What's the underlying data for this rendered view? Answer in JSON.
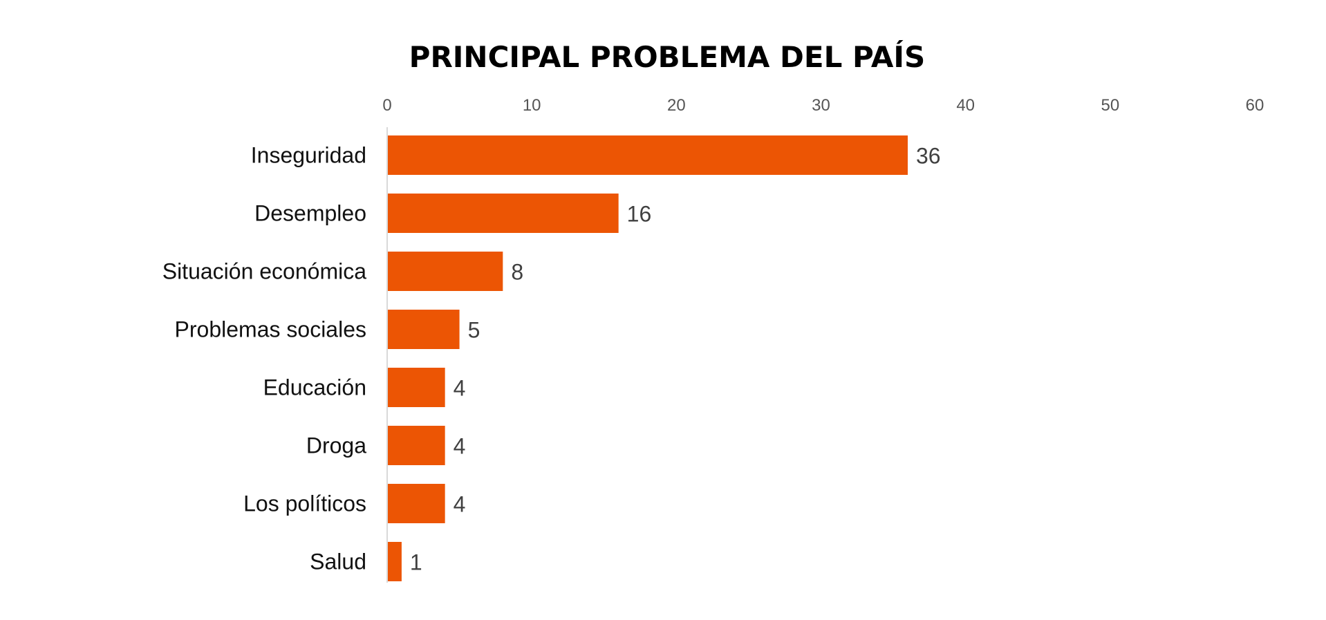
{
  "chart_data": {
    "type": "bar",
    "orientation": "horizontal",
    "title": "PRINCIPAL PROBLEMA DEL PAÍS",
    "categories": [
      "Inseguridad",
      "Desempleo",
      "Situación económica",
      "Problemas sociales",
      "Educación",
      "Droga",
      "Los políticos",
      "Salud"
    ],
    "values": [
      36,
      16,
      8,
      5,
      4,
      4,
      4,
      1
    ],
    "xlim": [
      0,
      60
    ],
    "xticks": [
      "0",
      "10",
      "20",
      "30",
      "40",
      "50",
      "60"
    ],
    "x_axis_position": "top",
    "grid": false,
    "legend": "none",
    "bar_color": "#EC5504",
    "axis_color": "#D9D9D9"
  }
}
